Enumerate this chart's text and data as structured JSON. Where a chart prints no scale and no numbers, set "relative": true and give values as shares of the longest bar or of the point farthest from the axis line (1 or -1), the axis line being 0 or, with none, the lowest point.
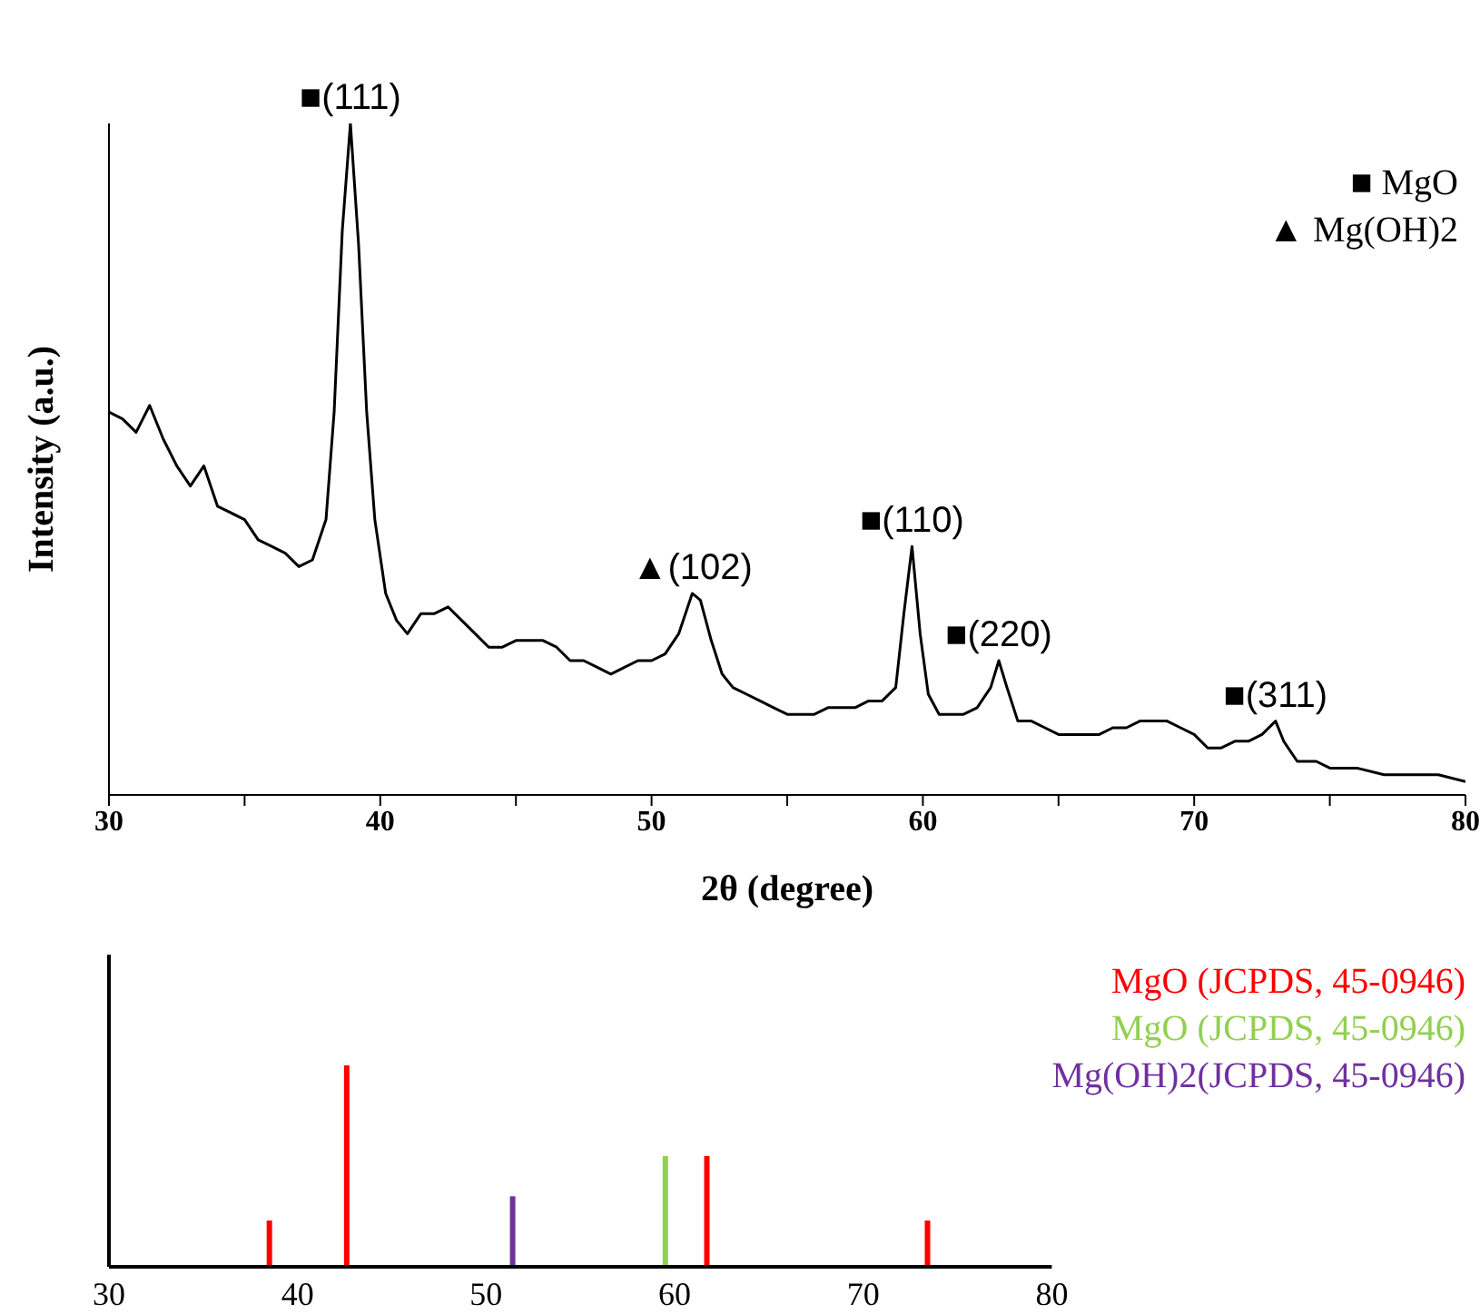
{
  "chart_data": [
    {
      "type": "line",
      "xlabel": "2θ (degree)",
      "ylabel": "Intensity (a.u.)",
      "relative": true,
      "xlim": [
        30,
        80
      ],
      "xticks": [
        30,
        {
          "value": 35,
          "label": null
        },
        40,
        {
          "value": 45,
          "label": null
        },
        50,
        {
          "value": 55,
          "label": null
        },
        60,
        {
          "value": 65,
          "label": null
        },
        70,
        {
          "value": 75,
          "label": null
        },
        80
      ],
      "x": [
        30,
        30.5,
        31,
        31.5,
        32,
        32.5,
        33,
        33.5,
        34,
        34.5,
        35,
        35.5,
        36,
        36.5,
        37,
        37.5,
        38,
        38.3,
        38.6,
        38.9,
        39.2,
        39.5,
        39.8,
        40.2,
        40.6,
        41,
        41.5,
        42,
        42.5,
        43,
        43.5,
        44,
        44.5,
        45,
        45.5,
        46,
        46.5,
        47,
        47.5,
        48,
        48.5,
        49,
        49.5,
        50,
        50.5,
        51,
        51.5,
        51.8,
        52.2,
        52.6,
        53,
        53.5,
        54,
        54.5,
        55,
        55.5,
        56,
        56.5,
        57,
        57.5,
        58,
        58.5,
        59,
        59.3,
        59.6,
        59.9,
        60.2,
        60.6,
        61,
        61.5,
        62,
        62.5,
        62.8,
        63.1,
        63.5,
        64,
        64.5,
        65,
        65.5,
        66,
        66.5,
        67,
        67.5,
        68,
        68.5,
        69,
        69.5,
        70,
        70.5,
        71,
        71.5,
        72,
        72.5,
        73,
        73.3,
        73.8,
        74.5,
        75,
        76,
        77,
        78,
        79,
        80
      ],
      "series": [
        {
          "color": "#000000",
          "values": [
            0.57,
            0.56,
            0.54,
            0.58,
            0.53,
            0.49,
            0.46,
            0.49,
            0.43,
            0.42,
            0.41,
            0.38,
            0.37,
            0.36,
            0.34,
            0.35,
            0.41,
            0.57,
            0.84,
            1,
            0.82,
            0.57,
            0.41,
            0.3,
            0.26,
            0.24,
            0.27,
            0.27,
            0.28,
            0.26,
            0.24,
            0.22,
            0.22,
            0.23,
            0.23,
            0.23,
            0.22,
            0.2,
            0.2,
            0.19,
            0.18,
            0.19,
            0.2,
            0.2,
            0.21,
            0.24,
            0.3,
            0.29,
            0.23,
            0.18,
            0.16,
            0.15,
            0.14,
            0.13,
            0.12,
            0.12,
            0.12,
            0.13,
            0.13,
            0.13,
            0.14,
            0.14,
            0.16,
            0.27,
            0.37,
            0.24,
            0.15,
            0.12,
            0.12,
            0.12,
            0.13,
            0.16,
            0.2,
            0.16,
            0.11,
            0.11,
            0.1,
            0.09,
            0.09,
            0.09,
            0.09,
            0.1,
            0.1,
            0.11,
            0.11,
            0.11,
            0.1,
            0.09,
            0.07,
            0.07,
            0.08,
            0.08,
            0.09,
            0.11,
            0.08,
            0.05,
            0.05,
            0.04,
            0.04,
            0.03,
            0.03,
            0.03,
            0.02
          ]
        }
      ],
      "annotations": [
        {
          "text": "■(111)",
          "x": 38.9,
          "y": 1
        },
        {
          "text": "▲(102)",
          "x": 51.5,
          "y": 0.3
        },
        {
          "text": "■(110)",
          "x": 59.6,
          "y": 0.37
        },
        {
          "text": "■(220)",
          "x": 62.8,
          "y": 0.2
        },
        {
          "text": "■(311)",
          "x": 73,
          "y": 0.11
        },
        "■ MgO",
        "▲ Mg(OH)2"
      ]
    },
    {
      "type": "bar",
      "relative": true,
      "xlim": [
        30,
        80
      ],
      "xticks": [
        30,
        40,
        50,
        60,
        70,
        80
      ],
      "legend": "top right",
      "series": [
        {
          "name": "MgO (JCPDS, 45-0946)",
          "color": "#ff0000",
          "x": [
            38.5,
            42.6,
            61.7,
            73.4
          ],
          "values": [
            0.23,
            1,
            0.55,
            0.23
          ]
        },
        {
          "name": "MgO (JCPDS, 45-0946)",
          "color": "#92d050",
          "x": [
            59.5
          ],
          "values": [
            0.55
          ]
        },
        {
          "name": "Mg(OH)2(JCPDS, 45-0946)",
          "color": "#7030a0",
          "x": [
            51.4
          ],
          "values": [
            0.35
          ]
        }
      ]
    }
  ]
}
